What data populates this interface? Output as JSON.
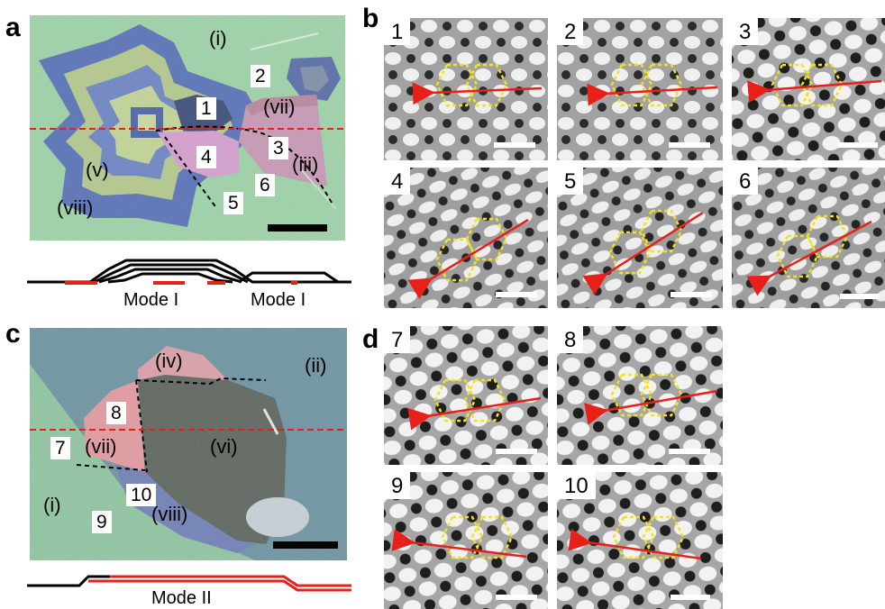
{
  "panels": {
    "a": "a",
    "b": "b",
    "c": "c",
    "d": "d"
  },
  "panel_a": {
    "regions": [
      "(i)",
      "(vii)",
      "(iii)",
      "(v)",
      "(viii)"
    ],
    "numbers": [
      "1",
      "2",
      "3",
      "4",
      "5",
      "6"
    ],
    "modes": [
      "Mode I",
      "Mode I"
    ]
  },
  "panel_c": {
    "regions": [
      "(iv)",
      "(ii)",
      "(vii)",
      "(vi)",
      "(i)",
      "(viii)"
    ],
    "numbers": [
      "8",
      "7",
      "10",
      "9"
    ],
    "mode": "Mode II"
  },
  "tiles_b": [
    "1",
    "2",
    "3",
    "4",
    "5",
    "6"
  ],
  "tiles_d": [
    "7",
    "8",
    "9",
    "10"
  ],
  "colors": {
    "stacking_arrow": "#e8201a",
    "hexagon_outline": "#f5e21a",
    "cut_line": "#e8201a",
    "profile_highlight": "#e8201a"
  }
}
